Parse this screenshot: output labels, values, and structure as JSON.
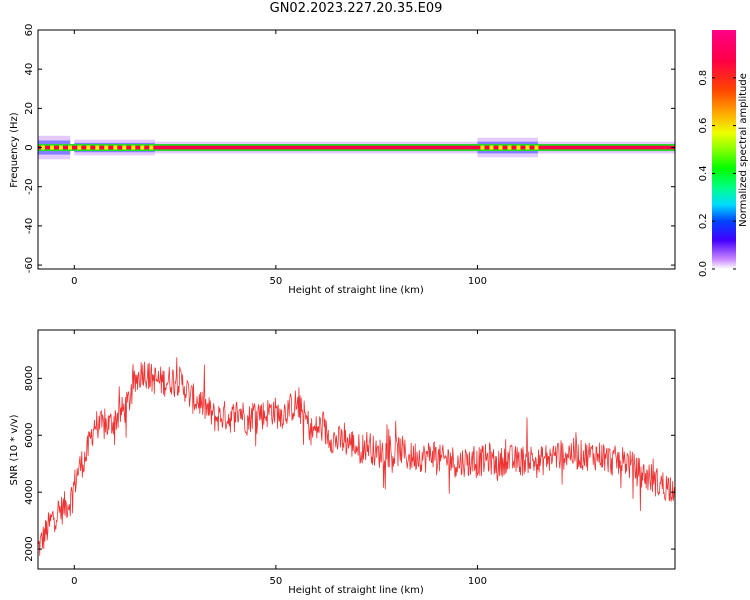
{
  "title": "GN02.2023.227.20.35.E09",
  "chart_data": [
    {
      "type": "heatmap",
      "xlabel": "Height of straight line (km)",
      "ylabel": "Frequency (Hz)",
      "xlim": [
        -9,
        149
      ],
      "ylim": [
        -62,
        60
      ],
      "xticks": [
        0,
        50,
        100
      ],
      "yticks": [
        -60,
        -40,
        -20,
        0,
        20,
        40,
        60
      ],
      "colorbar": {
        "label": "Normalized spectral amplitude",
        "ticks": [
          0.0,
          0.2,
          0.4,
          0.6,
          0.8
        ],
        "range": [
          0,
          1
        ]
      },
      "band_center_hz": 0,
      "band_segments": [
        {
          "x0": -9,
          "x1": -1,
          "spread_hz": 6,
          "peak": 0.9
        },
        {
          "x0": 0,
          "x1": 20,
          "spread_hz": 4,
          "peak": 0.85
        },
        {
          "x0": 20,
          "x1": 60,
          "spread_hz": 3,
          "peak": 1.0
        },
        {
          "x0": 60,
          "x1": 100,
          "spread_hz": 3,
          "peak": 1.0
        },
        {
          "x0": 100,
          "x1": 115,
          "spread_hz": 5,
          "peak": 0.6
        },
        {
          "x0": 115,
          "x1": 149,
          "spread_hz": 3,
          "peak": 1.0
        }
      ]
    },
    {
      "type": "line",
      "xlabel": "Height of straight line (km)",
      "ylabel": "SNR (10 * v/v)",
      "xlim": [
        -9,
        149
      ],
      "ylim": [
        1300,
        9700
      ],
      "xticks": [
        0,
        50,
        100
      ],
      "yticks": [
        2000,
        4000,
        6000,
        8000
      ],
      "color": "#ee3333",
      "series": [
        {
          "x": [
            -9,
            -7,
            -5,
            -3,
            -1,
            1,
            3,
            5,
            7,
            9,
            11,
            13,
            15,
            17,
            19,
            21,
            23,
            25,
            27,
            29,
            31,
            33,
            35,
            37,
            39,
            41,
            43,
            45,
            47,
            49,
            51,
            53,
            55,
            57,
            59,
            61,
            63,
            65,
            67,
            69,
            71,
            73,
            75,
            77,
            79,
            81,
            83,
            85,
            87,
            89,
            91,
            93,
            95,
            97,
            99,
            101,
            103,
            105,
            107,
            109,
            111,
            113,
            115,
            117,
            119,
            121,
            123,
            125,
            127,
            129,
            131,
            133,
            135,
            137,
            139,
            141,
            143,
            145,
            147,
            149
          ],
          "y": [
            2000,
            2600,
            3200,
            3400,
            3700,
            4800,
            5300,
            6400,
            6300,
            6400,
            6700,
            7000,
            7800,
            8300,
            8000,
            7900,
            7900,
            8000,
            7800,
            7300,
            7200,
            6900,
            6600,
            6700,
            6600,
            6900,
            6500,
            6900,
            6700,
            6900,
            6700,
            6900,
            7100,
            6700,
            6100,
            6300,
            6000,
            5800,
            5800,
            5700,
            5500,
            5700,
            5300,
            5500,
            5300,
            5500,
            5200,
            5300,
            5200,
            5400,
            5100,
            5200,
            5000,
            5100,
            5000,
            5100,
            5200,
            4900,
            5200,
            5100,
            5100,
            5200,
            5000,
            5200,
            5300,
            5300,
            5400,
            5300,
            5300,
            5300,
            5300,
            5100,
            5100,
            5100,
            4800,
            4600,
            4500,
            4300,
            4200,
            4200
          ]
        }
      ]
    }
  ]
}
